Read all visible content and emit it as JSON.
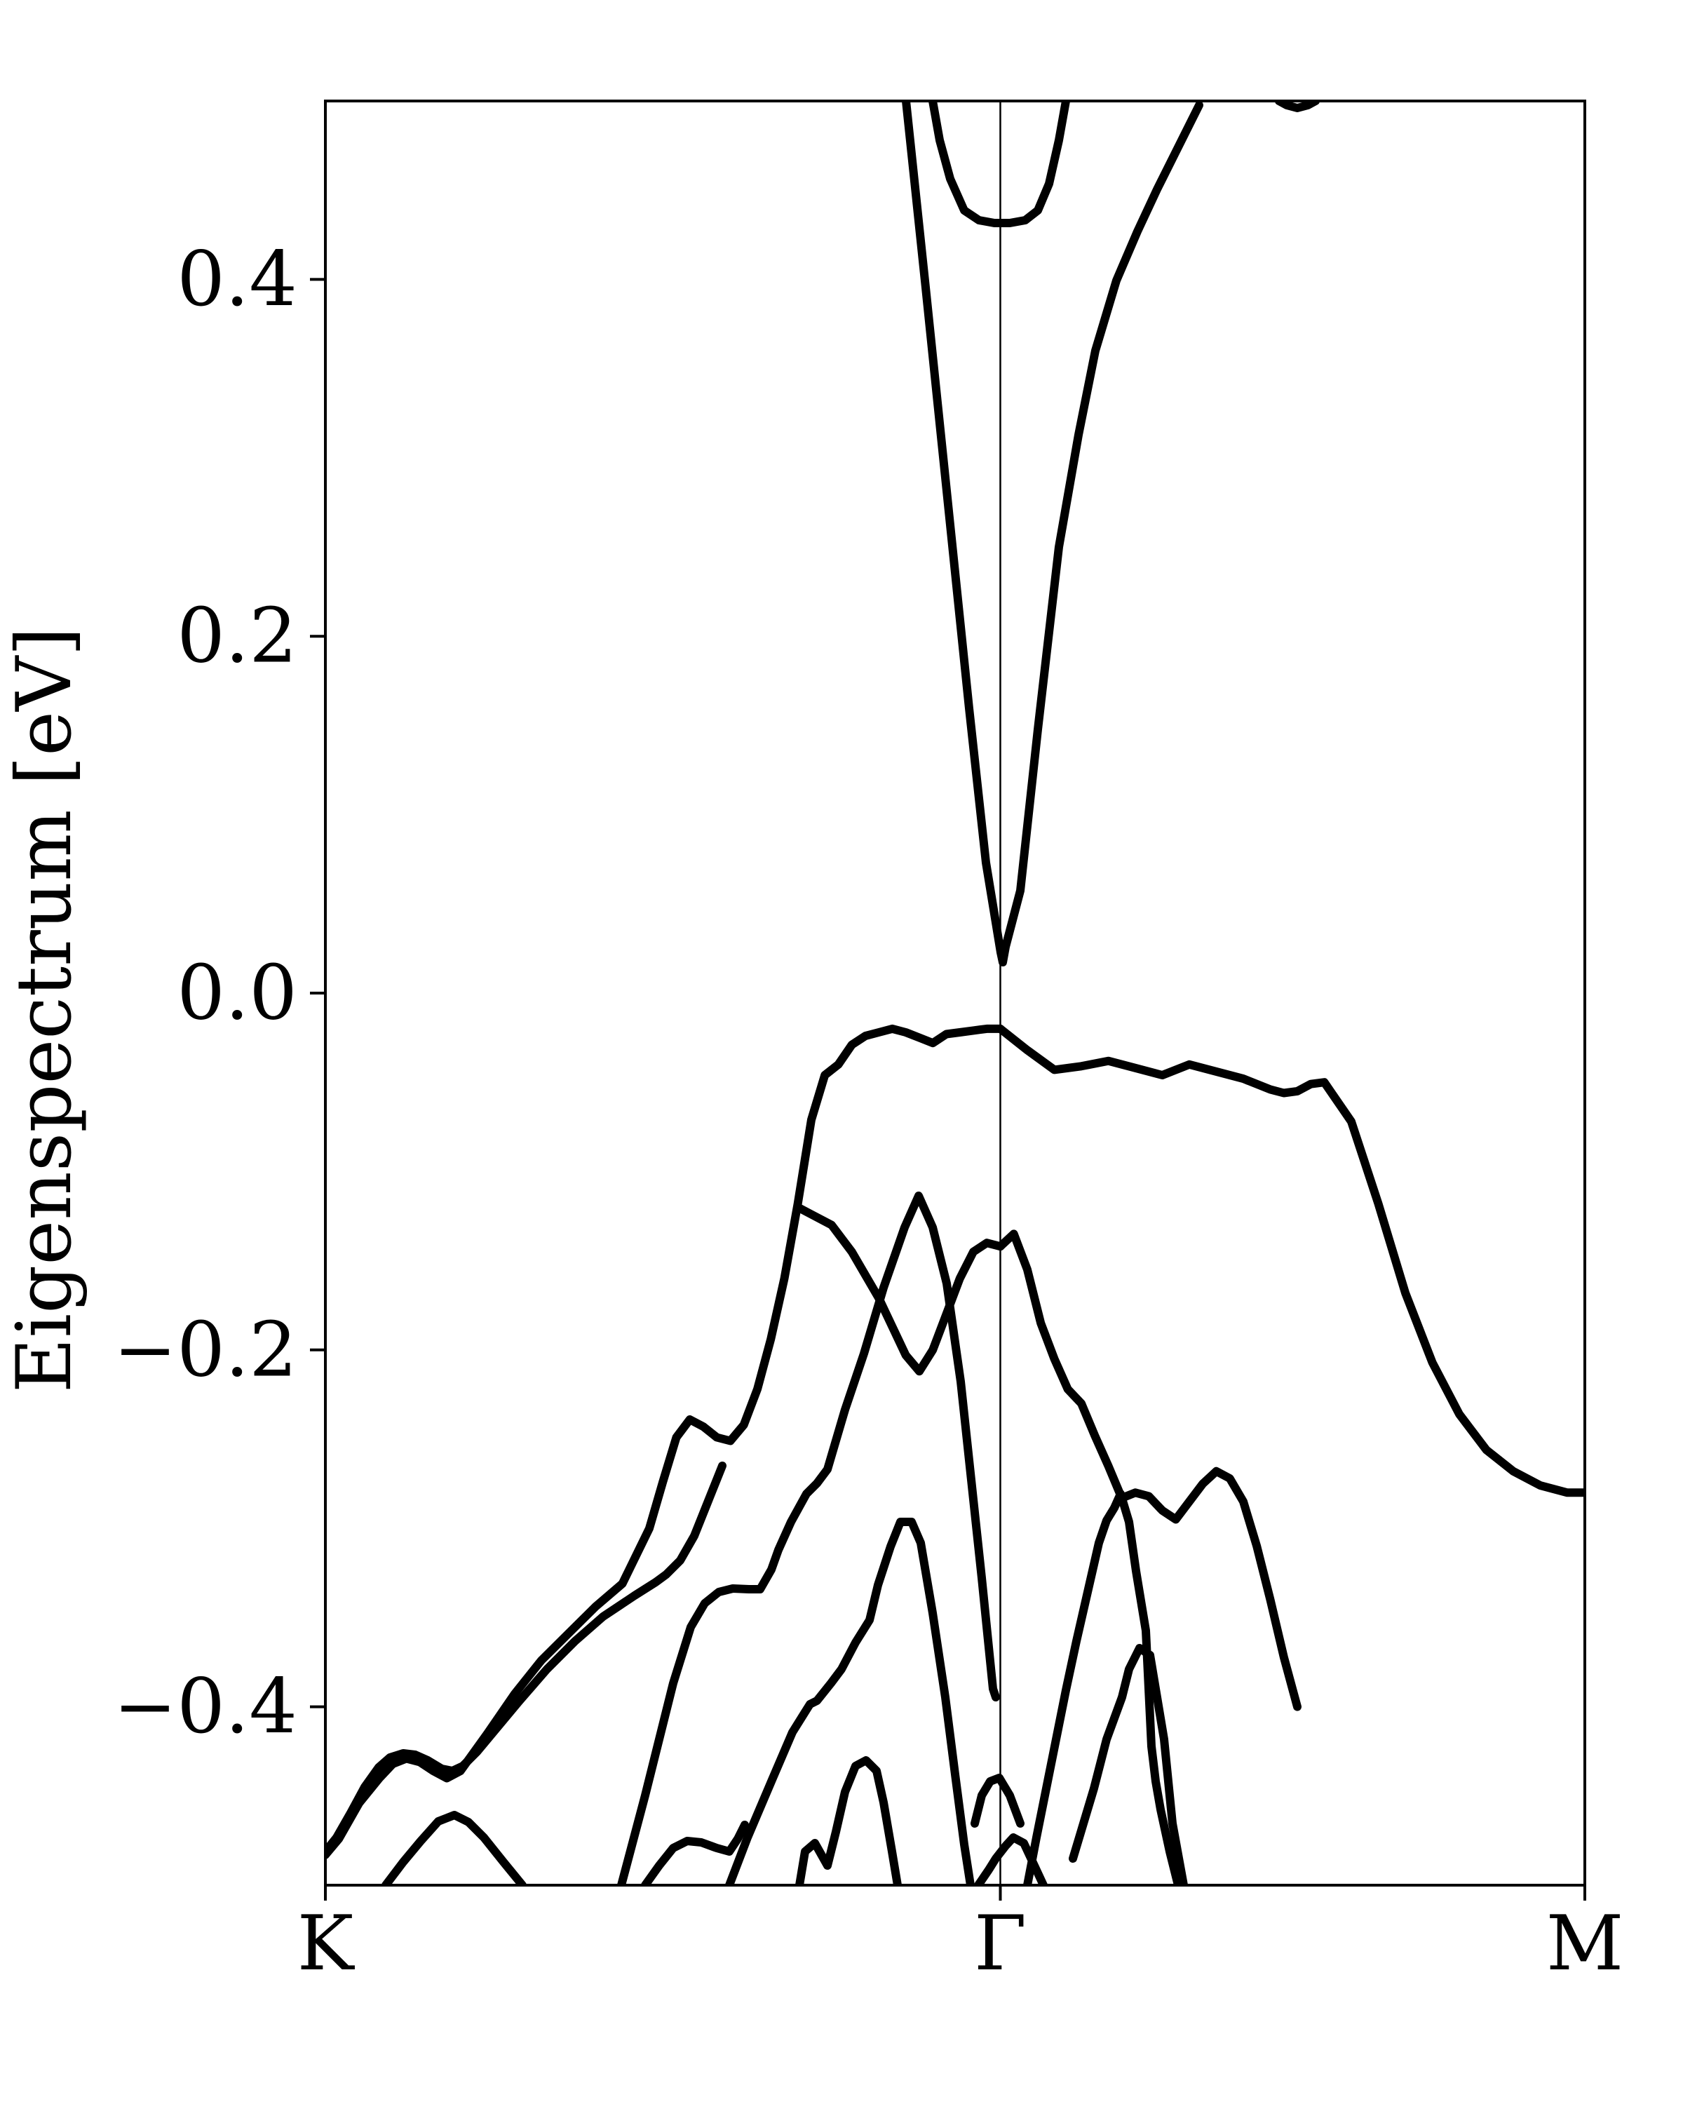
{
  "chart_data": {
    "type": "line",
    "title": "",
    "xlabel": "",
    "ylabel": "Eigenspectrum [eV]",
    "ylim": [
      -0.5,
      0.5
    ],
    "xlim": [
      0,
      1.866
    ],
    "grid": false,
    "legend": "none",
    "y_ticks": [
      {
        "value": -0.4,
        "label": "−0.4"
      },
      {
        "value": -0.2,
        "label": "−0.2"
      },
      {
        "value": 0.0,
        "label": "0.0"
      },
      {
        "value": 0.2,
        "label": "0.2"
      },
      {
        "value": 0.4,
        "label": "0.4"
      }
    ],
    "x_ticks": [
      {
        "value": 0,
        "label": "K"
      },
      {
        "value": 1.0,
        "label": "Γ"
      },
      {
        "value": 1.866,
        "label": "M"
      }
    ],
    "vertical_lines": [
      1.0
    ],
    "series": [
      {
        "x": [
          0.0,
          0.02,
          0.05,
          0.08,
          0.1,
          0.12,
          0.14,
          0.16,
          0.18,
          0.2,
          0.24,
          0.28,
          0.32,
          0.36,
          0.4,
          0.44,
          0.48,
          0.5,
          0.52,
          0.54,
          0.56,
          0.58,
          0.6,
          0.62,
          0.64,
          0.66,
          0.68,
          0.7,
          0.72,
          0.74,
          0.76,
          0.78,
          0.8,
          0.82,
          0.84,
          0.86,
          0.88,
          0.9,
          0.92,
          0.94,
          0.96,
          0.98,
          1.0
        ],
        "y": [
          -0.483,
          -0.474,
          -0.454,
          -0.44,
          -0.432,
          -0.429,
          -0.431,
          -0.436,
          -0.44,
          -0.436,
          -0.415,
          -0.393,
          -0.374,
          -0.359,
          -0.344,
          -0.331,
          -0.3,
          -0.274,
          -0.249,
          -0.239,
          -0.243,
          -0.249,
          -0.251,
          -0.242,
          -0.222,
          -0.194,
          -0.16,
          -0.118,
          -0.071,
          -0.046,
          -0.04,
          -0.029,
          -0.024,
          -0.022,
          -0.02,
          -0.022,
          -0.025,
          -0.028,
          -0.023,
          -0.022,
          -0.021,
          -0.02,
          -0.02
        ]
      },
      {
        "x": [
          1.0,
          1.04,
          1.08,
          1.12,
          1.16,
          1.2,
          1.24,
          1.28,
          1.32,
          1.36,
          1.4,
          1.42,
          1.44,
          1.46,
          1.48,
          1.52,
          1.56,
          1.6,
          1.64,
          1.68,
          1.72,
          1.76,
          1.8,
          1.84,
          1.866
        ],
        "y": [
          -0.02,
          -0.032,
          -0.043,
          -0.041,
          -0.038,
          -0.042,
          -0.046,
          -0.04,
          -0.044,
          -0.048,
          -0.054,
          -0.056,
          -0.055,
          -0.051,
          -0.05,
          -0.072,
          -0.118,
          -0.168,
          -0.207,
          -0.236,
          -0.256,
          -0.268,
          -0.276,
          -0.28,
          -0.28
        ]
      },
      {
        "x": [
          0.7,
          0.72,
          0.75,
          0.78,
          0.82,
          0.86,
          0.88,
          0.9,
          0.92,
          0.94,
          0.96,
          0.98,
          1.0
        ],
        "y": [
          -0.12,
          -0.124,
          -0.13,
          -0.145,
          -0.171,
          -0.203,
          -0.212,
          -0.2,
          -0.18,
          -0.16,
          -0.145,
          -0.14,
          -0.142
        ]
      },
      {
        "x": [
          1.0,
          1.02,
          1.04,
          1.06,
          1.08,
          1.1,
          1.12,
          1.14,
          1.16,
          1.18,
          1.2,
          1.22,
          1.24,
          1.26,
          1.28,
          1.3,
          1.32,
          1.34,
          1.36,
          1.38,
          1.4,
          1.42,
          1.44
        ],
        "y": [
          -0.142,
          -0.135,
          -0.155,
          -0.185,
          -0.205,
          -0.222,
          -0.23,
          -0.248,
          -0.265,
          -0.283,
          -0.28,
          -0.282,
          -0.29,
          -0.295,
          -0.285,
          -0.275,
          -0.268,
          -0.272,
          -0.285,
          -0.31,
          -0.34,
          -0.372,
          -0.4
        ]
      }
    ]
  }
}
